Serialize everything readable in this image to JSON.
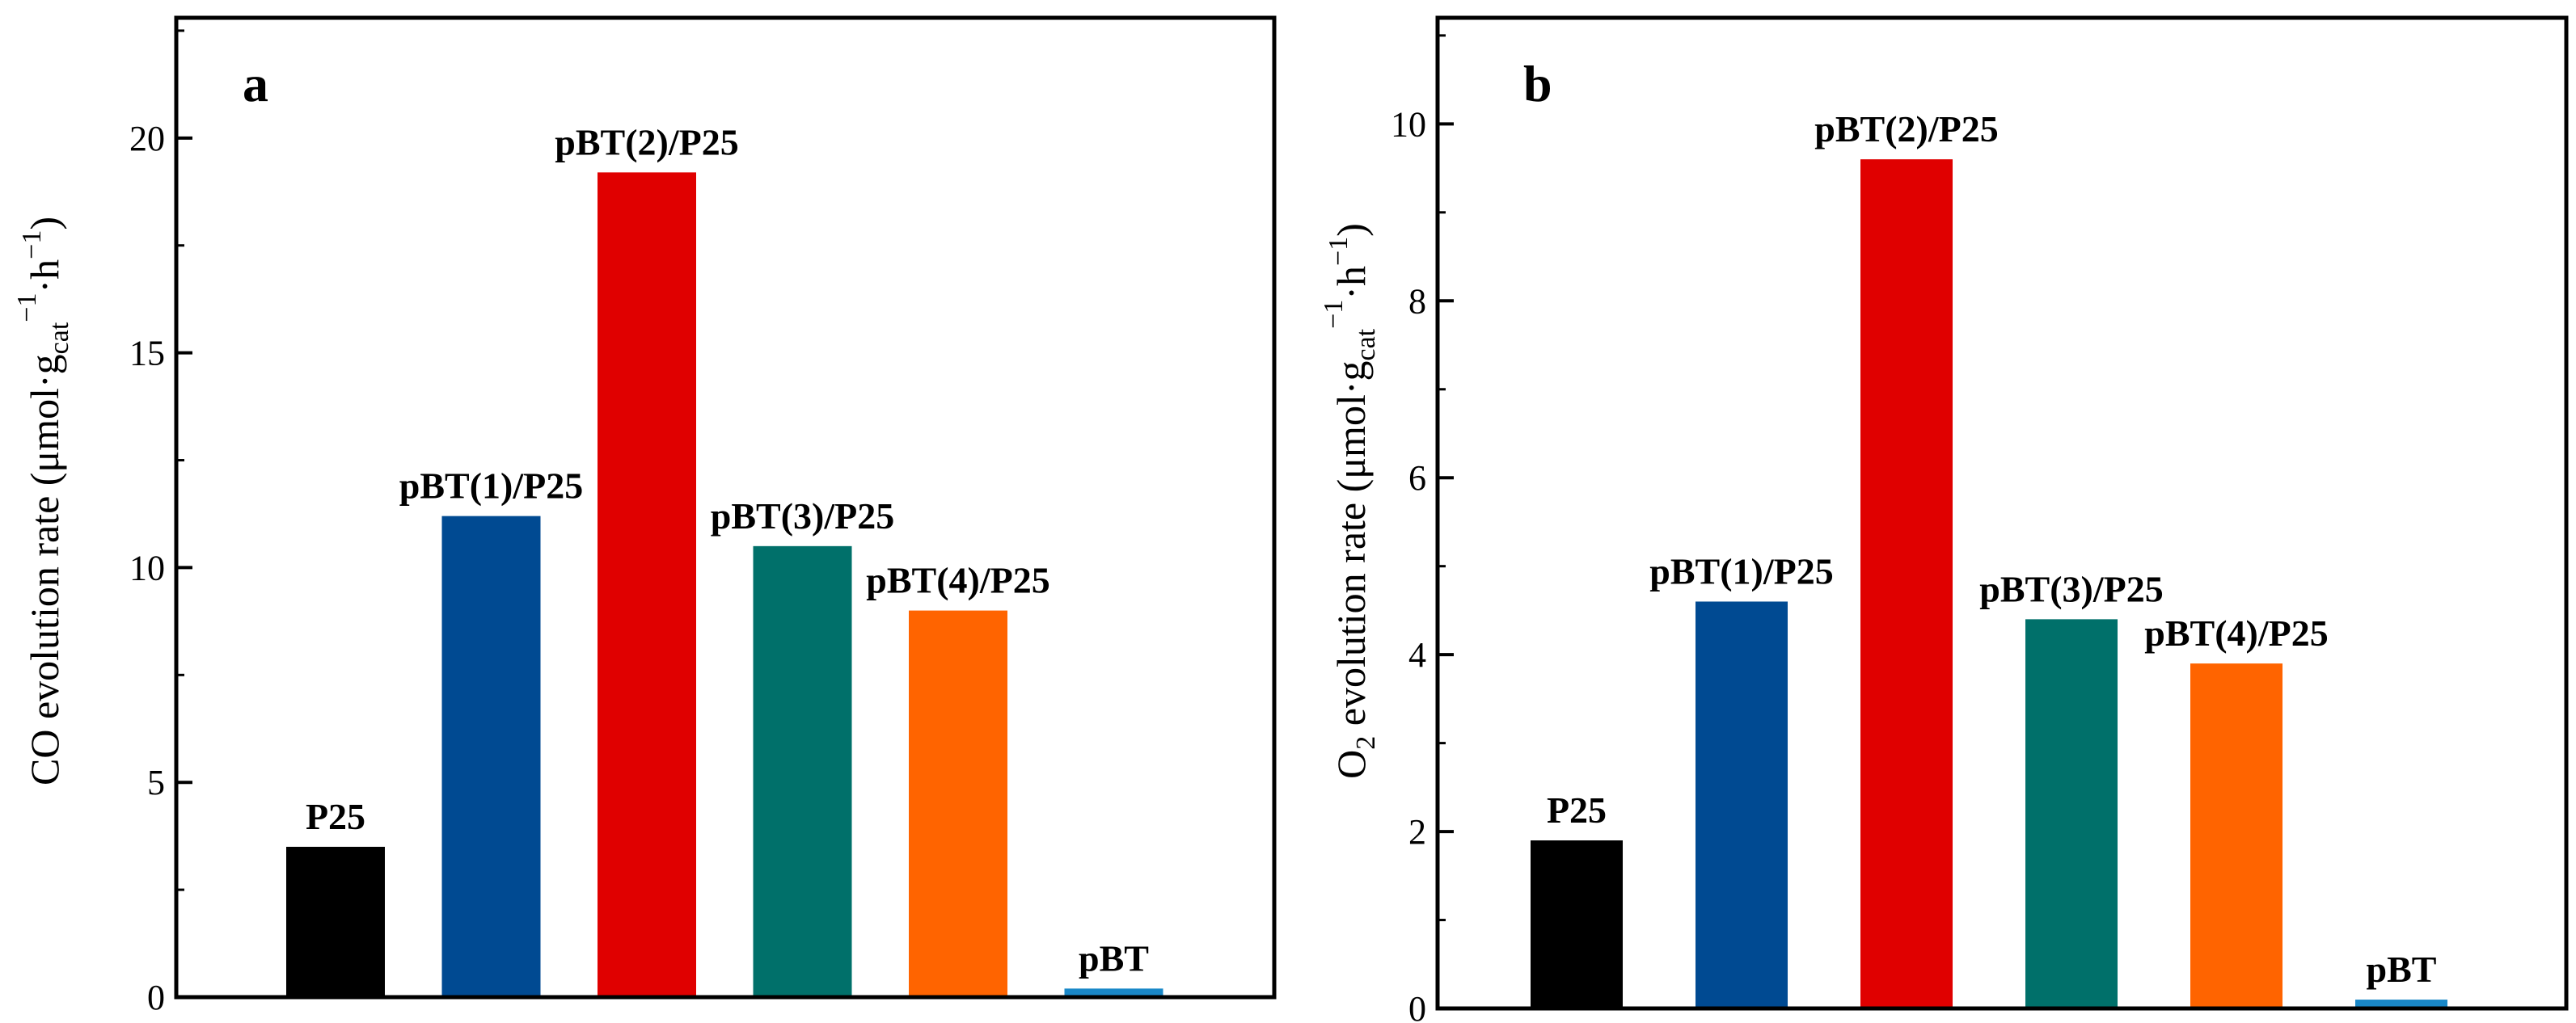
{
  "chart_data": [
    {
      "type": "bar",
      "panel_label": "a",
      "categories": [
        "P25",
        "pBT(1)/P25",
        "pBT(2)/P25",
        "pBT(3)/P25",
        "pBT(4)/P25",
        "pBT"
      ],
      "values": [
        3.5,
        11.2,
        19.2,
        10.5,
        9.0,
        0.2
      ],
      "colors": [
        "#000000",
        "#004a92",
        "#e00000",
        "#00706a",
        "#ff6400",
        "#1a88c8"
      ],
      "ylim": [
        0,
        22.8
      ],
      "yticks": [
        0,
        5,
        10,
        15,
        20
      ],
      "ytick_labels": [
        "0",
        "5",
        "10",
        "15",
        "20"
      ],
      "ylabel": {
        "main": "CO evolution rate (μmol·g",
        "sub": "cat",
        "sup1": "−1",
        "mid": "·h",
        "sup2": "−1",
        "end": ")"
      },
      "xlabel": "",
      "title": ""
    },
    {
      "type": "bar",
      "panel_label": "b",
      "categories": [
        "P25",
        "pBT(1)/P25",
        "pBT(2)/P25",
        "pBT(3)/P25",
        "pBT(4)/P25",
        "pBT"
      ],
      "values": [
        1.9,
        4.6,
        9.6,
        4.4,
        3.9,
        0.1
      ],
      "colors": [
        "#000000",
        "#004a92",
        "#e00000",
        "#00706a",
        "#ff6400",
        "#1a88c8"
      ],
      "ylim": [
        0,
        11.2
      ],
      "yticks": [
        0,
        2,
        4,
        6,
        8,
        10
      ],
      "ytick_labels": [
        "0",
        "2",
        "4",
        "6",
        "8",
        "10"
      ],
      "ylabel": {
        "main": "O",
        "sub": "2",
        "rest": " evolution rate  (μmol·g",
        "sub2": "cat",
        "sup1": "−1",
        "mid": "·h",
        "sup2": "−1",
        "end": ")"
      },
      "xlabel": "",
      "title": ""
    }
  ]
}
